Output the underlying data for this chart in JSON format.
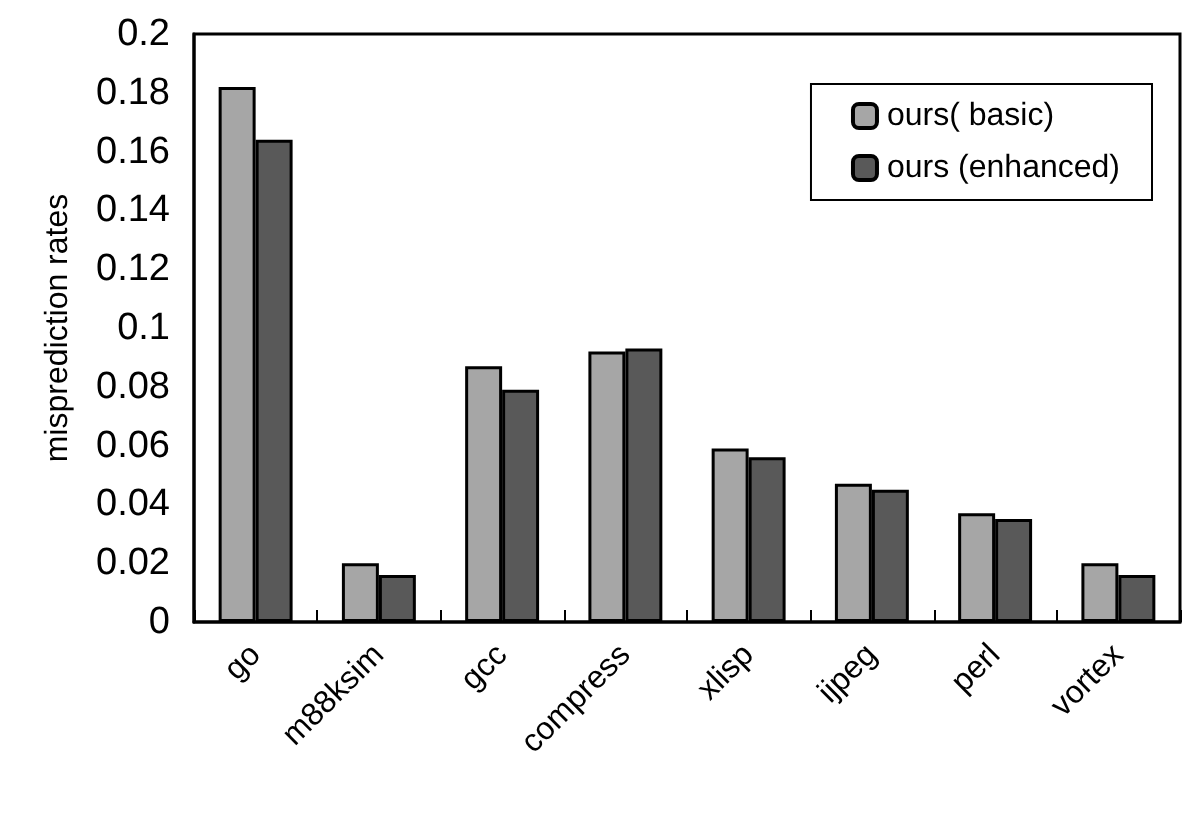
{
  "chart_data": {
    "type": "bar",
    "ylabel": "misprediction rates",
    "categories": [
      "go",
      "m88ksim",
      "gcc",
      "compress",
      "xlisp",
      "ijpeg",
      "perl",
      "vortex"
    ],
    "series": [
      {
        "name": "ours( basic)",
        "color": "#a6a6a6",
        "values": [
          0.182,
          0.02,
          0.087,
          0.092,
          0.059,
          0.047,
          0.037,
          0.02
        ]
      },
      {
        "name": "ours (enhanced)",
        "color": "#595959",
        "values": [
          0.164,
          0.016,
          0.079,
          0.093,
          0.056,
          0.045,
          0.035,
          0.016
        ]
      }
    ],
    "ylim": [
      0,
      0.2
    ],
    "yticks": [
      0,
      0.02,
      0.04,
      0.06,
      0.08,
      0.1,
      0.12,
      0.14,
      0.16,
      0.18,
      0.2
    ],
    "grid": false,
    "legend": "top right"
  }
}
